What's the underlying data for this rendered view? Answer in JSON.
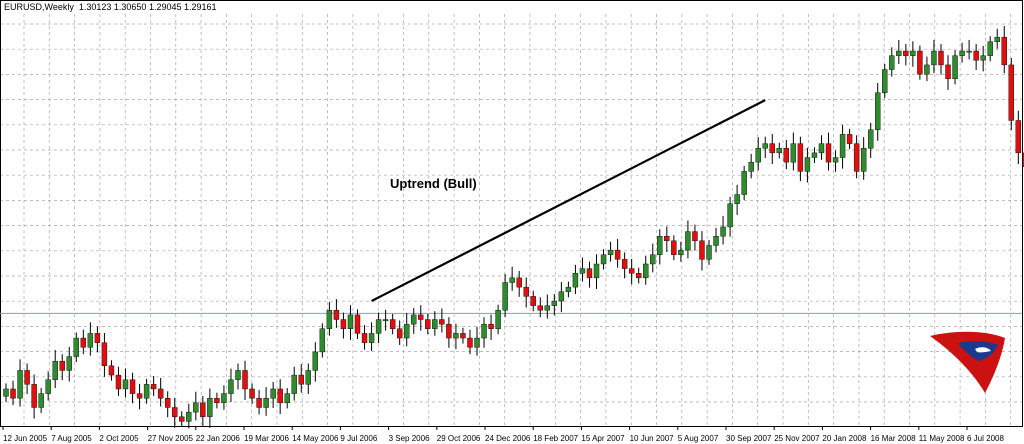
{
  "chart_header": {
    "symbol": "EURUSD,Weekly",
    "ohlc": "1.30123 1.30650 1.29045 1.29161"
  },
  "colors": {
    "background": "#ffffff",
    "grid": "#a8a8a8",
    "bull_candle": "#2e8b2e",
    "bear_candle": "#e01010",
    "wick": "#000000",
    "trendline": "#000000",
    "price_line": "#7f9fbf",
    "logo_primary": "#cc1111",
    "logo_secondary": "#1a3a8c"
  },
  "logo": {
    "icon": "bull-logo-icon"
  },
  "chart_data": {
    "type": "candlestick",
    "title": "",
    "series_label": "EURUSD,Weekly",
    "price_range": [
      1.17,
      1.615
    ],
    "current_price": 1.29161,
    "grid": true,
    "x_tick_labels": [
      "12 Jun 2005",
      "7 Aug 2005",
      "2 Oct 2005",
      "27 Nov 2005",
      "22 Jan 2006",
      "19 Mar 2006",
      "14 May 2006",
      "9 Jul 2006",
      "3 Sep 2006",
      "29 Oct 2006",
      "24 Dec 2006",
      "18 Feb 2007",
      "15 Apr 2007",
      "10 Jun 2007",
      "5 Aug 2007",
      "30 Sep 2007",
      "25 Nov 2007",
      "20 Jan 2008",
      "16 Mar 2008",
      "11 May 2008",
      "6 Jul 2008"
    ],
    "annotation": {
      "text": "Uptrend (Bull)"
    },
    "trendline": {
      "start": {
        "week": 52,
        "price": 1.305
      },
      "end": {
        "week": 108,
        "price": 1.522
      }
    },
    "candles_close": [
      1.21,
      1.2,
      1.23,
      1.215,
      1.19,
      1.205,
      1.22,
      1.24,
      1.23,
      1.245,
      1.265,
      1.255,
      1.27,
      1.26,
      1.235,
      1.225,
      1.21,
      1.22,
      1.205,
      1.2,
      1.215,
      1.21,
      1.2,
      1.19,
      1.18,
      1.175,
      1.185,
      1.195,
      1.18,
      1.2,
      1.195,
      1.205,
      1.22,
      1.23,
      1.21,
      1.2,
      1.19,
      1.2,
      1.21,
      1.195,
      1.205,
      1.225,
      1.215,
      1.23,
      1.25,
      1.275,
      1.295,
      1.285,
      1.275,
      1.29,
      1.27,
      1.26,
      1.27,
      1.285,
      1.285,
      1.275,
      1.265,
      1.28,
      1.29,
      1.285,
      1.275,
      1.285,
      1.28,
      1.265,
      1.27,
      1.265,
      1.255,
      1.265,
      1.28,
      1.275,
      1.295,
      1.325,
      1.33,
      1.32,
      1.31,
      1.3,
      1.295,
      1.3,
      1.305,
      1.315,
      1.32,
      1.335,
      1.34,
      1.33,
      1.345,
      1.355,
      1.36,
      1.35,
      1.34,
      1.335,
      1.33,
      1.345,
      1.355,
      1.375,
      1.37,
      1.355,
      1.36,
      1.38,
      1.37,
      1.35,
      1.365,
      1.375,
      1.385,
      1.41,
      1.42,
      1.445,
      1.455,
      1.47,
      1.475,
      1.465,
      1.47,
      1.455,
      1.475,
      1.445,
      1.46,
      1.465,
      1.475,
      1.455,
      1.46,
      1.485,
      1.475,
      1.445,
      1.47,
      1.49,
      1.53,
      1.555,
      1.57,
      1.575,
      1.57,
      1.575,
      1.55,
      1.56,
      1.575,
      1.56,
      1.545,
      1.57,
      1.575,
      1.575,
      1.565,
      1.57,
      1.585,
      1.59,
      1.56,
      1.5,
      1.465,
      1.45
    ]
  }
}
